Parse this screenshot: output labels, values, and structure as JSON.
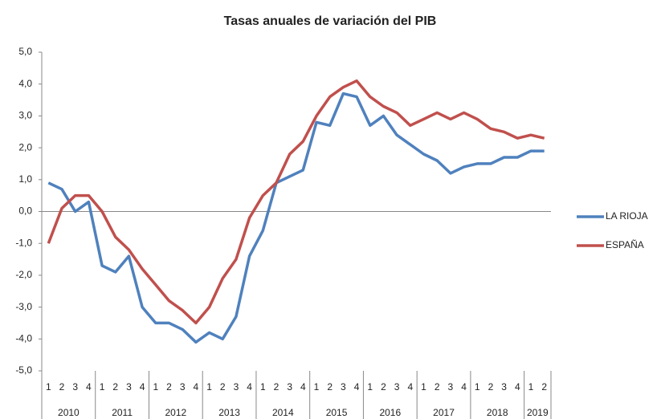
{
  "chart_data": {
    "type": "line",
    "title": "Tasas anuales de variación del PIB",
    "categories": [
      "1",
      "2",
      "3",
      "4",
      "1",
      "2",
      "3",
      "4",
      "1",
      "2",
      "3",
      "4",
      "1",
      "2",
      "3",
      "4",
      "1",
      "2",
      "3",
      "4",
      "1",
      "2",
      "3",
      "4",
      "1",
      "2",
      "3",
      "4",
      "1",
      "2",
      "3",
      "4",
      "1",
      "2",
      "3",
      "4",
      "1",
      "2"
    ],
    "years": [
      "2010",
      "2011",
      "2012",
      "2013",
      "2014",
      "2015",
      "2016",
      "2017",
      "2018",
      "2019"
    ],
    "series": [
      {
        "name": "LA RIOJA",
        "color": "#4f81bd",
        "values": [
          0.9,
          0.7,
          0.0,
          0.3,
          -1.7,
          -1.9,
          -1.4,
          -3.0,
          -3.5,
          -3.5,
          -3.7,
          -4.1,
          -3.8,
          -4.0,
          -3.3,
          -1.4,
          -0.6,
          0.9,
          1.1,
          1.3,
          2.8,
          2.7,
          3.7,
          3.6,
          2.7,
          3.0,
          2.4,
          2.1,
          1.8,
          1.6,
          1.2,
          1.4,
          1.5,
          1.5,
          1.7,
          1.7,
          1.9,
          1.9
        ]
      },
      {
        "name": "ESPAÑA",
        "color": "#c0504d",
        "values": [
          -1.0,
          0.1,
          0.5,
          0.5,
          0.0,
          -0.8,
          -1.2,
          -1.8,
          -2.3,
          -2.8,
          -3.1,
          -3.5,
          -3.0,
          -2.1,
          -1.5,
          -0.2,
          0.5,
          0.9,
          1.8,
          2.2,
          3.0,
          3.6,
          3.9,
          4.1,
          3.6,
          3.3,
          3.1,
          2.7,
          2.9,
          3.1,
          2.9,
          3.1,
          2.9,
          2.6,
          2.5,
          2.3,
          2.4,
          2.3
        ]
      }
    ],
    "ylim": [
      -5,
      5
    ],
    "yticks": [
      {
        "value": -5,
        "label": "-5,0"
      },
      {
        "value": -4,
        "label": "-4,0"
      },
      {
        "value": -3,
        "label": "-3,0"
      },
      {
        "value": -2,
        "label": "-2,0"
      },
      {
        "value": -1,
        "label": "-1,0"
      },
      {
        "value": 0,
        "label": "0,0"
      },
      {
        "value": 1,
        "label": "1,0"
      },
      {
        "value": 2,
        "label": "2,0"
      },
      {
        "value": 3,
        "label": "3,0"
      },
      {
        "value": 4,
        "label": "4,0"
      },
      {
        "value": 5,
        "label": "5,0"
      }
    ],
    "legend": "right"
  }
}
